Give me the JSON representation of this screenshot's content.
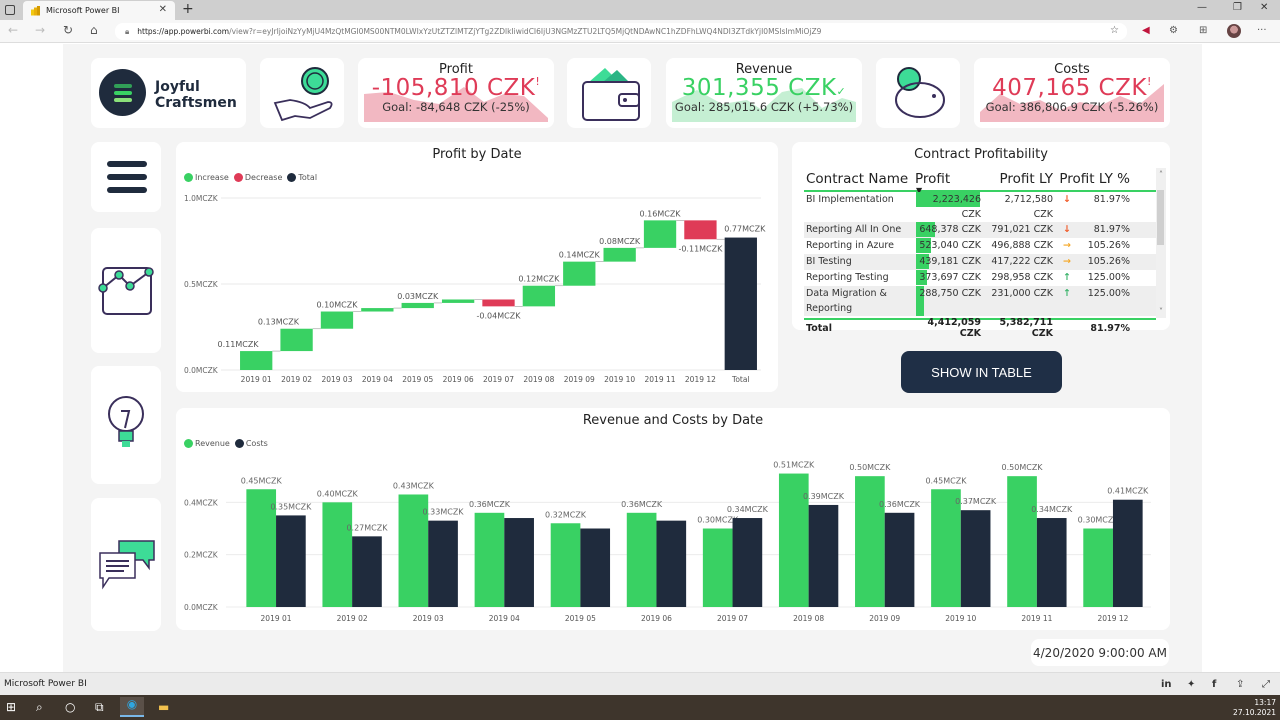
{
  "browser": {
    "tab_title": "Microsoft Power BI",
    "url_host": "https://app.powerbi.com",
    "url_path": "/view?r=eyJrIjoiNzYyMjU4MzQtMGI0MS00NTM0LWIxYzUtZTZlMTZjYTg2ZDlkIiwidCI6IjU3NGMzZTU2LTQ5MjQtNDAwNC1hZDFhLWQ4NDI3ZTdkYjI0MSIsImMiOjZ9"
  },
  "header": {
    "logo_line1": "Joyful",
    "logo_line2": "Craftsmen",
    "kpis": [
      {
        "title": "Profit",
        "value": "-105,810 CZK",
        "indicator": "!",
        "goal": "Goal: -84,648 CZK (-25%)",
        "status": "bad"
      },
      {
        "title": "Revenue",
        "value": "301,355 CZK",
        "indicator": "✓",
        "goal": "Goal: 285,015.6 CZK (+5.73%)",
        "status": "good"
      },
      {
        "title": "Costs",
        "value": "407,165 CZK",
        "indicator": "!",
        "goal": "Goal: 386,806.9 CZK (-5.26%)",
        "status": "bad"
      }
    ]
  },
  "colors": {
    "green": "#39d163",
    "red": "#df3b57",
    "navy": "#1f2b3d",
    "orange": "#f5a623",
    "arrow_red": "#f05a28"
  },
  "nav": [
    {
      "name": "menu"
    },
    {
      "name": "analytics"
    },
    {
      "name": "insights"
    },
    {
      "name": "comments"
    }
  ],
  "contract_table": {
    "title": "Contract Profitability",
    "columns": [
      "Contract Name",
      "Profit",
      "Profit LY",
      "Profit LY %"
    ],
    "rows": [
      {
        "name": "BI Implementation",
        "profit": "2,223,426 CZK",
        "profit_ly": "2,712,580 CZK",
        "trend": "down",
        "pct": "81.97%",
        "bar": 1.0
      },
      {
        "name": "Reporting All In One",
        "profit": "648,378 CZK",
        "profit_ly": "791,021 CZK",
        "trend": "down",
        "pct": "81.97%",
        "bar": 0.29
      },
      {
        "name": "Reporting in Azure",
        "profit": "523,040 CZK",
        "profit_ly": "496,888 CZK",
        "trend": "right",
        "pct": "105.26%",
        "bar": 0.235
      },
      {
        "name": "BI Testing",
        "profit": "439,181 CZK",
        "profit_ly": "417,222 CZK",
        "trend": "right",
        "pct": "105.26%",
        "bar": 0.198
      },
      {
        "name": "Reporting Testing",
        "profit": "373,697 CZK",
        "profit_ly": "298,958 CZK",
        "trend": "up",
        "pct": "125.00%",
        "bar": 0.168
      },
      {
        "name": "Data Migration & Reporting",
        "profit": "288,750 CZK",
        "profit_ly": "231,000 CZK",
        "trend": "up",
        "pct": "125.00%",
        "bar": 0.13
      }
    ],
    "total": {
      "label": "Total",
      "profit": "4,412,059 CZK",
      "profit_ly": "5,382,711 CZK",
      "pct": "81.97%"
    }
  },
  "show_button": "SHOW IN TABLE",
  "date_label": "4/20/2020 9:00:00 AM",
  "footer": {
    "name": "Microsoft Power BI"
  },
  "taskbar": {
    "time": "13:17",
    "date": "27.10.2021"
  },
  "chart_data": [
    {
      "type": "waterfall",
      "title": "Profit by Date",
      "legend": [
        "Increase",
        "Decrease",
        "Total"
      ],
      "legend_position": "top-left",
      "categories": [
        "2019 01",
        "2019 02",
        "2019 03",
        "2019 04",
        "2019 05",
        "2019 06",
        "2019 07",
        "2019 08",
        "2019 09",
        "2019 10",
        "2019 11",
        "2019 12",
        "Total"
      ],
      "values": [
        0.11,
        0.13,
        0.1,
        0.02,
        0.03,
        0.02,
        -0.04,
        0.12,
        0.14,
        0.08,
        0.16,
        -0.11,
        0.77
      ],
      "labels": [
        "0.11MCZK",
        "0.13MCZK",
        "0.10MCZK",
        "",
        "0.03MCZK",
        "",
        "-0.04MCZK",
        "0.12MCZK",
        "0.14MCZK",
        "0.08MCZK",
        "0.16MCZK",
        "-0.11MCZK",
        "0.77MCZK"
      ],
      "yticks": [
        "0.0MCZK",
        "0.5MCZK",
        "1.0MCZK"
      ],
      "ytick_values": [
        0,
        0.5,
        1.0
      ],
      "ylim": [
        0,
        1.0
      ],
      "grid": true
    },
    {
      "type": "bar",
      "title": "Revenue and Costs by Date",
      "legend_position": "top-left",
      "categories": [
        "2019 01",
        "2019 02",
        "2019 03",
        "2019 04",
        "2019 05",
        "2019 06",
        "2019 07",
        "2019 08",
        "2019 09",
        "2019 10",
        "2019 11",
        "2019 12"
      ],
      "series": [
        {
          "name": "Revenue",
          "values": [
            0.45,
            0.4,
            0.43,
            0.36,
            0.32,
            0.36,
            0.3,
            0.51,
            0.5,
            0.45,
            0.5,
            0.3
          ],
          "labels": [
            "0.45MCZK",
            "0.40MCZK",
            "0.43MCZK",
            "0.36MCZK",
            "0.32MCZK",
            "0.36MCZK",
            "0.30MCZK",
            "0.51MCZK",
            "0.50MCZK",
            "0.45MCZK",
            "0.50MCZK",
            "0.30MCZK"
          ]
        },
        {
          "name": "Costs",
          "values": [
            0.35,
            0.27,
            0.33,
            0.34,
            0.3,
            0.33,
            0.34,
            0.39,
            0.36,
            0.37,
            0.34,
            0.41
          ],
          "labels": [
            "0.35MCZK",
            "0.27MCZK",
            "0.33MCZK",
            "",
            "",
            "",
            "0.34MCZK",
            "0.39MCZK",
            "0.36MCZK",
            "0.37MCZK",
            "0.34MCZK",
            "0.41MCZK"
          ]
        }
      ],
      "yticks": [
        "0.0MCZK",
        "0.2MCZK",
        "0.4MCZK"
      ],
      "ytick_values": [
        0,
        0.2,
        0.4
      ],
      "ylim": [
        0,
        0.6
      ],
      "grid": true
    }
  ]
}
